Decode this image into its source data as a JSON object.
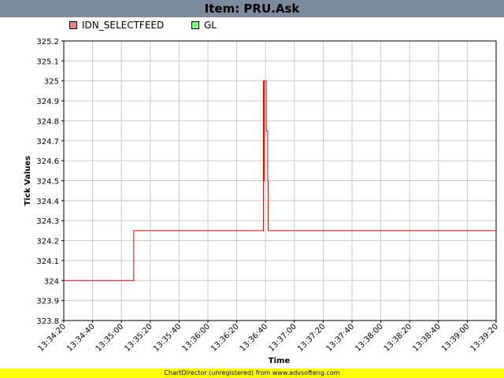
{
  "header": {
    "title": "Item: PRU.Ask"
  },
  "footer": {
    "text": "ChartDirector (unregistered) from www.advsofteng.com"
  },
  "colors": {
    "title_bar": "#7b8a9c",
    "series1": "#ff0000",
    "series1_swatch": "#f08080",
    "series2_swatch": "#80ff80",
    "footer": "#ffff00"
  },
  "chart_data": {
    "type": "line",
    "title": "Item: PRU.Ask",
    "xlabel": "Time",
    "ylabel": "Tick Values",
    "ylim": [
      323.8,
      325.2
    ],
    "yticks": [
      "323.8",
      "323.9",
      "324",
      "324.1",
      "324.2",
      "324.3",
      "324.4",
      "324.5",
      "324.6",
      "324.7",
      "324.8",
      "324.9",
      "325",
      "325.1",
      "325.2"
    ],
    "xticks": [
      "13:34:20",
      "13:34:40",
      "13:35:00",
      "13:35:20",
      "13:35:40",
      "13:36:00",
      "13:36:20",
      "13:36:40",
      "13:37:00",
      "13:37:20",
      "13:37:40",
      "13:38:00",
      "13:38:20",
      "13:38:40",
      "13:39:00",
      "13:39:20"
    ],
    "xlim_seconds": [
      0,
      300
    ],
    "grid": true,
    "legend_placement": "top-left",
    "series": [
      {
        "name": "IDN_SELECTFEED",
        "color": "#ff0000",
        "points": [
          [
            0,
            324.0
          ],
          [
            48.5,
            324.0
          ],
          [
            48.5,
            324.25
          ],
          [
            138.5,
            324.25
          ],
          [
            138.5,
            325.0
          ],
          [
            138.8,
            325.0
          ],
          [
            138.8,
            324.5
          ],
          [
            139.1,
            324.5
          ],
          [
            139.1,
            325.0
          ],
          [
            140.5,
            325.0
          ],
          [
            140.5,
            324.75
          ],
          [
            141.5,
            324.75
          ],
          [
            141.5,
            324.5
          ],
          [
            141.8,
            324.5
          ],
          [
            141.8,
            324.25
          ],
          [
            300,
            324.25
          ]
        ]
      },
      {
        "name": "GL",
        "color": "#80ff80",
        "points": []
      }
    ]
  }
}
